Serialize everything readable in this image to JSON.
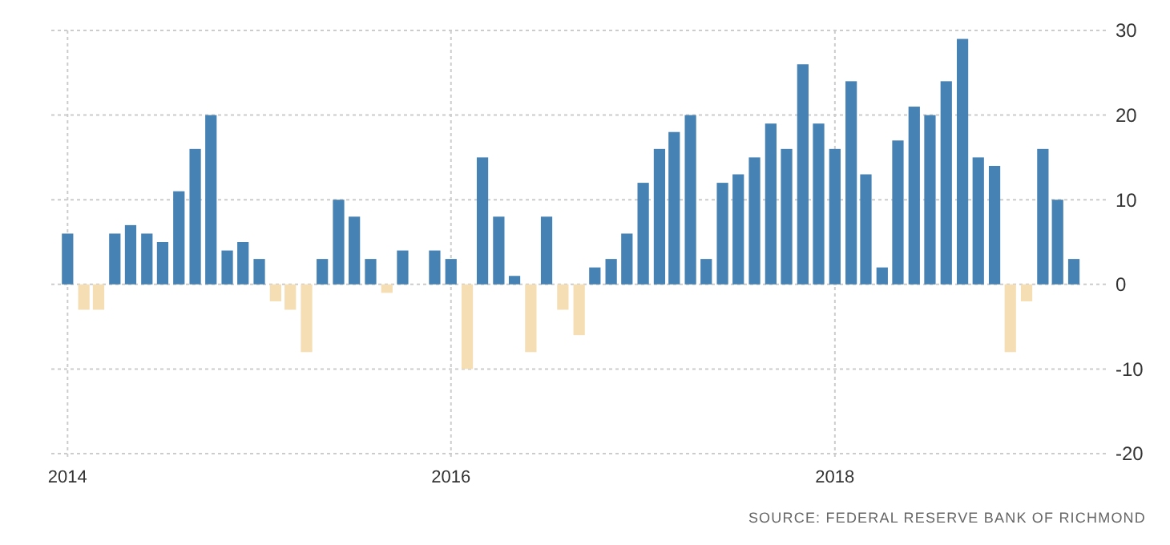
{
  "chart_data": {
    "type": "bar",
    "x": [
      "2014-01",
      "2014-02",
      "2014-03",
      "2014-04",
      "2014-05",
      "2014-06",
      "2014-07",
      "2014-08",
      "2014-09",
      "2014-10",
      "2014-11",
      "2014-12",
      "2015-01",
      "2015-02",
      "2015-03",
      "2015-04",
      "2015-05",
      "2015-06",
      "2015-07",
      "2015-08",
      "2015-09",
      "2015-10",
      "2015-11",
      "2015-12",
      "2016-01",
      "2016-02",
      "2016-03",
      "2016-04",
      "2016-05",
      "2016-06",
      "2016-07",
      "2016-08",
      "2016-09",
      "2016-10",
      "2016-11",
      "2016-12",
      "2017-01",
      "2017-02",
      "2017-03",
      "2017-04",
      "2017-05",
      "2017-06",
      "2017-07",
      "2017-08",
      "2017-09",
      "2017-10",
      "2017-11",
      "2017-12",
      "2018-01",
      "2018-02",
      "2018-03",
      "2018-04",
      "2018-05",
      "2018-06",
      "2018-07",
      "2018-08",
      "2018-09",
      "2018-10",
      "2018-11",
      "2018-12",
      "2019-01",
      "2019-02",
      "2019-03",
      "2019-04"
    ],
    "values": [
      6,
      -3,
      -3,
      6,
      7,
      6,
      5,
      11,
      16,
      20,
      4,
      5,
      3,
      -2,
      -3,
      -8,
      3,
      10,
      8,
      3,
      -1,
      4,
      0,
      4,
      3,
      -10,
      15,
      8,
      1,
      -8,
      8,
      -3,
      -6,
      2,
      3,
      6,
      12,
      16,
      18,
      20,
      3,
      12,
      13,
      15,
      19,
      16,
      26,
      19,
      16,
      24,
      13,
      2,
      17,
      21,
      20,
      24,
      29,
      15,
      14,
      -8,
      -2,
      16,
      10,
      3
    ],
    "colors": [
      "#4682b4",
      "#f5deb3",
      "#f5deb3",
      "#4682b4",
      "#4682b4",
      "#4682b4",
      "#4682b4",
      "#4682b4",
      "#4682b4",
      "#4682b4",
      "#4682b4",
      "#4682b4",
      "#4682b4",
      "#f5deb3",
      "#f5deb3",
      "#f5deb3",
      "#4682b4",
      "#4682b4",
      "#4682b4",
      "#4682b4",
      "#f5deb3",
      "#4682b4",
      "#4682b4",
      "#4682b4",
      "#4682b4",
      "#f5deb3",
      "#4682b4",
      "#4682b4",
      "#4682b4",
      "#f5deb3",
      "#4682b4",
      "#f5deb3",
      "#f5deb3",
      "#4682b4",
      "#4682b4",
      "#4682b4",
      "#4682b4",
      "#4682b4",
      "#4682b4",
      "#4682b4",
      "#4682b4",
      "#4682b4",
      "#4682b4",
      "#4682b4",
      "#4682b4",
      "#4682b4",
      "#4682b4",
      "#4682b4",
      "#4682b4",
      "#4682b4",
      "#4682b4",
      "#4682b4",
      "#4682b4",
      "#4682b4",
      "#4682b4",
      "#4682b4",
      "#4682b4",
      "#4682b4",
      "#4682b4",
      "#f5deb3",
      "#f5deb3",
      "#4682b4",
      "#4682b4",
      "#4682b4"
    ],
    "xlim": [
      "2013-12",
      "2019-06"
    ],
    "xticks": [
      {
        "value": "2014",
        "label": "2014"
      },
      {
        "value": "2016",
        "label": "2016"
      },
      {
        "value": "2018",
        "label": "2018"
      }
    ],
    "ylim": [
      -20,
      30
    ],
    "yticks": [
      -20,
      -10,
      0,
      10,
      20,
      30
    ],
    "grid": true,
    "annotations": [
      "SOURCE: FEDERAL RESERVE BANK OF RICHMOND"
    ]
  }
}
